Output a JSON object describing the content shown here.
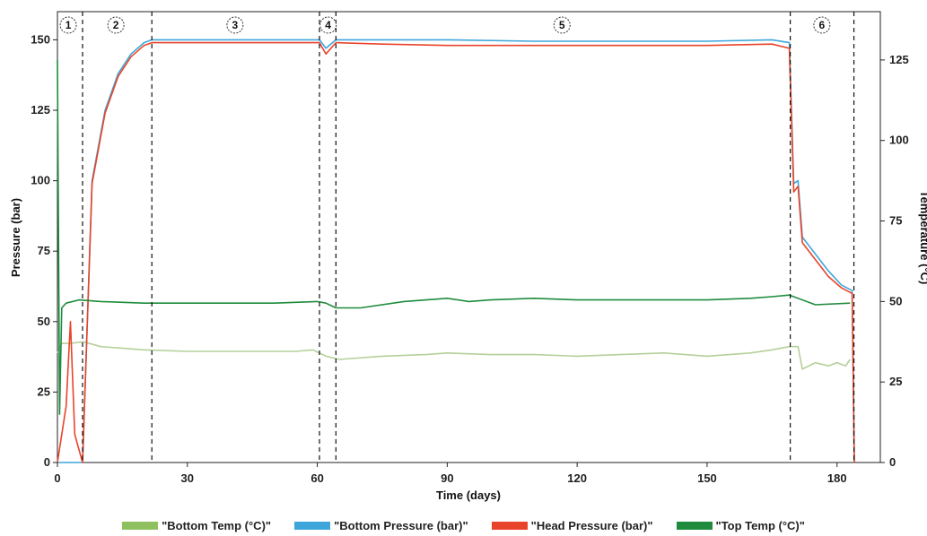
{
  "chart_data": {
    "type": "line",
    "xlabel": "Time (days)",
    "ylabel": "Pressure (bar)",
    "y2label": "Temperature (°C)",
    "xlim": [
      0,
      190
    ],
    "ylim": [
      0,
      160
    ],
    "y2lim": [
      0,
      140
    ],
    "x_ticks": [
      0,
      30,
      60,
      90,
      120,
      150,
      180
    ],
    "y_ticks": [
      0,
      25,
      50,
      75,
      100,
      125,
      150
    ],
    "y2_ticks": [
      0,
      25,
      50,
      75,
      100,
      125
    ],
    "grid": false,
    "legend": "bottom",
    "phases": [
      {
        "label": "1",
        "x": 2.5
      },
      {
        "label": "2",
        "x": 13.5
      },
      {
        "label": "3",
        "x": 41
      },
      {
        "label": "4",
        "x": 62.5
      },
      {
        "label": "5",
        "x": 116.5
      },
      {
        "label": "6",
        "x": 176.5
      }
    ],
    "phase_boundaries": [
      5.8,
      21.8,
      60.5,
      64.3,
      169.2,
      183.9
    ],
    "series": [
      {
        "name": "\"Bottom Temp (°C)\"",
        "axis": "right",
        "color": "#b5d09a",
        "x": [
          0,
          1,
          3,
          6,
          10,
          20,
          30,
          45,
          55,
          59,
          62,
          65,
          75,
          85,
          90,
          100,
          110,
          120,
          130,
          140,
          150,
          160,
          165,
          169,
          171,
          172,
          175,
          178,
          180,
          182,
          183
        ],
        "y": [
          34,
          37,
          37,
          37.5,
          36,
          35,
          34.5,
          34.5,
          34.5,
          35,
          33,
          32,
          33,
          33.5,
          34,
          33.5,
          33.5,
          33,
          33.5,
          34,
          33,
          34,
          35,
          36,
          36,
          29,
          31,
          30,
          31,
          30,
          32
        ]
      },
      {
        "name": "\"Bottom Pressure (bar)\"",
        "axis": "left",
        "color": "#3fa6dc",
        "x": [
          0,
          5.8,
          8,
          11,
          14,
          17,
          20,
          21.8,
          30,
          40,
          50,
          60.5,
          62,
          64.3,
          75,
          90,
          110,
          130,
          150,
          165,
          169,
          170,
          171,
          172,
          175,
          178,
          181,
          183.5,
          184
        ],
        "y": [
          0,
          0,
          100,
          125,
          138,
          145,
          149,
          150,
          150,
          150,
          150,
          150,
          147,
          150,
          150,
          150,
          149.5,
          149.5,
          149.5,
          150,
          149,
          99,
          100,
          80,
          74,
          68,
          63,
          61,
          0
        ]
      },
      {
        "name": "\"Head Pressure (bar)\"",
        "axis": "left",
        "color": "#e8442a",
        "x": [
          0,
          2,
          3,
          4,
          5.8,
          8,
          11,
          14,
          17,
          20,
          21.8,
          30,
          40,
          50,
          60.5,
          62,
          64.3,
          75,
          90,
          110,
          130,
          150,
          165,
          169,
          170,
          171,
          172,
          175,
          178,
          181,
          183.5,
          184
        ],
        "y": [
          0,
          20,
          50,
          10,
          0,
          99,
          124,
          137,
          144,
          148,
          149,
          149,
          149,
          149,
          149,
          145,
          149,
          148.5,
          148,
          148,
          148,
          148,
          148.5,
          147,
          96,
          98,
          78,
          72,
          66,
          62,
          60,
          0
        ]
      },
      {
        "name": "\"Top Temp (°C)\"",
        "axis": "right",
        "color": "#1e8c3c",
        "x": [
          0,
          0.5,
          1,
          2,
          5,
          10,
          20,
          30,
          40,
          50,
          60,
          62,
          64.3,
          70,
          80,
          90,
          95,
          100,
          110,
          120,
          130,
          140,
          150,
          160,
          165,
          169,
          175,
          183
        ],
        "y": [
          125,
          15,
          48,
          49.5,
          50.5,
          50,
          49.5,
          49.5,
          49.5,
          49.5,
          50,
          49.5,
          48,
          48,
          50,
          51,
          50,
          50.5,
          51,
          50.5,
          50.5,
          50.5,
          50.5,
          51,
          51.5,
          52,
          49,
          49.5
        ]
      }
    ]
  },
  "legend": [
    {
      "name": "\"Bottom Temp (°C)\"",
      "color": "#8fc060"
    },
    {
      "name": "\"Bottom Pressure (bar)\"",
      "color": "#3fa6dc"
    },
    {
      "name": "\"Head Pressure (bar)\"",
      "color": "#e8442a"
    },
    {
      "name": "\"Top Temp (°C)\"",
      "color": "#1e8c3c"
    }
  ]
}
